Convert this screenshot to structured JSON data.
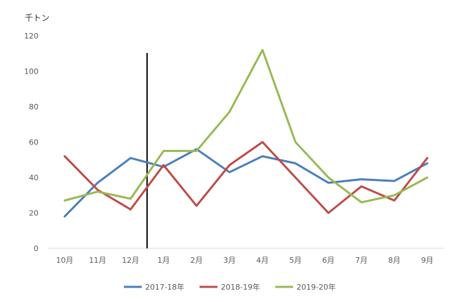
{
  "chart_data": {
    "type": "line",
    "unit_label": "千トン",
    "categories": [
      "10月",
      "11月",
      "12月",
      "1月",
      "2月",
      "3月",
      "4月",
      "5月",
      "6月",
      "7月",
      "8月",
      "9月"
    ],
    "ylim": [
      0,
      120
    ],
    "yticks": [
      0,
      20,
      40,
      60,
      80,
      100,
      120
    ],
    "grid": false,
    "legend_position": "bottom",
    "marker_line_after_category": "12月",
    "series": [
      {
        "name": "2017-18年",
        "color": "#4A7EBB",
        "values": [
          18,
          37,
          51,
          46,
          56,
          43,
          52,
          48,
          37,
          39,
          38,
          48
        ]
      },
      {
        "name": "2018-19年",
        "color": "#BE4B48",
        "values": [
          52,
          33,
          22,
          47,
          24,
          47,
          60,
          40,
          20,
          35,
          27,
          51
        ]
      },
      {
        "name": "2019-20年",
        "color": "#98B954",
        "values": [
          27,
          32,
          28,
          55,
          55,
          77,
          112,
          60,
          40,
          26,
          30,
          40
        ]
      }
    ]
  }
}
